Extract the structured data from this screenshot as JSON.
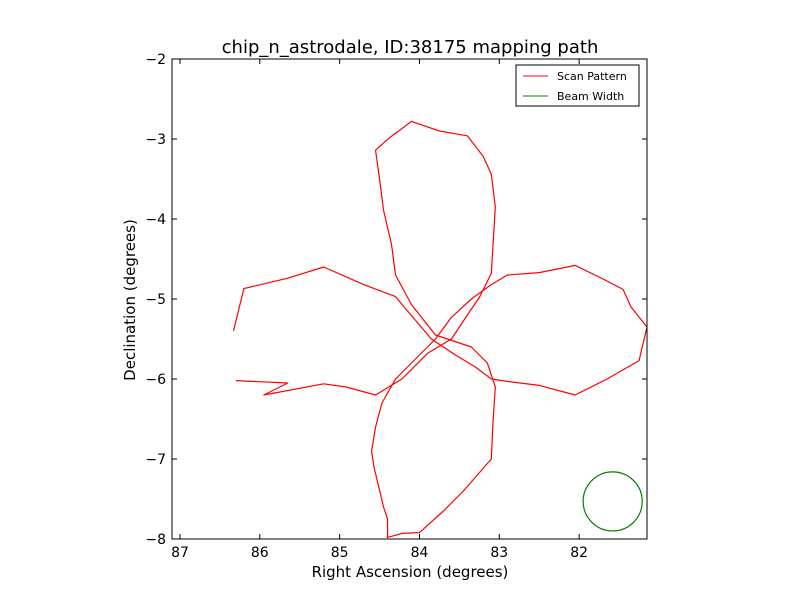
{
  "chart_data": {
    "type": "line",
    "title": "chip_n_astrodale, ID:38175 mapping path",
    "xlabel": "Right Ascension (degrees)",
    "ylabel": "Declination (degrees)",
    "xlim": [
      87.1,
      81.15
    ],
    "ylim": [
      -8,
      -2
    ],
    "xticks": [
      87,
      86,
      85,
      84,
      83,
      82
    ],
    "yticks": [
      -2,
      -3,
      -4,
      -5,
      -6,
      -7,
      -8
    ],
    "xtick_labels": [
      "87",
      "86",
      "85",
      "84",
      "83",
      "82"
    ],
    "ytick_labels": [
      "−2",
      "−3",
      "−4",
      "−5",
      "−6",
      "−7",
      "−8"
    ],
    "grid": false,
    "legend_position": "top-right",
    "colors": {
      "scan": "#ff0000",
      "beam": "#008000"
    },
    "series": [
      {
        "name": "Scan Pattern",
        "kind": "line",
        "x": [
          86.33,
          86.2,
          85.65,
          85.2,
          84.7,
          84.3,
          84.15,
          83.85,
          83.55,
          83.3,
          83.1,
          82.9,
          82.5,
          82.05,
          81.65,
          81.3,
          81.25,
          81.15,
          81.35,
          81.45,
          81.7,
          82.05,
          82.5,
          82.9,
          83.1,
          83.35,
          83.6,
          83.8,
          84.05,
          84.3,
          84.47,
          84.55,
          84.6,
          84.57,
          84.45,
          84.4,
          84.4,
          84.22,
          84.0,
          83.7,
          83.45,
          83.1,
          83.08,
          83.05,
          83.15,
          83.35,
          83.8,
          84.1,
          84.3,
          84.35,
          84.45,
          84.5,
          84.55,
          84.37,
          84.1,
          83.75,
          83.4,
          83.2,
          83.1,
          83.05,
          83.1,
          83.25,
          83.4,
          83.6,
          83.9,
          84.22,
          84.55,
          84.92,
          85.2,
          85.95,
          85.65,
          86.3
        ],
        "y": [
          -5.4,
          -4.87,
          -4.74,
          -4.6,
          -4.82,
          -4.97,
          -5.15,
          -5.5,
          -5.7,
          -5.85,
          -6.0,
          -6.03,
          -6.08,
          -6.2,
          -6.0,
          -5.8,
          -5.77,
          -5.35,
          -5.1,
          -4.88,
          -4.75,
          -4.58,
          -4.67,
          -4.7,
          -4.82,
          -5.0,
          -5.23,
          -5.5,
          -5.75,
          -6.0,
          -6.3,
          -6.6,
          -6.9,
          -7.1,
          -7.6,
          -7.75,
          -7.98,
          -7.93,
          -7.92,
          -7.65,
          -7.4,
          -7.0,
          -6.55,
          -6.1,
          -5.8,
          -5.6,
          -5.45,
          -5.07,
          -4.7,
          -4.32,
          -3.89,
          -3.5,
          -3.14,
          -2.98,
          -2.78,
          -2.9,
          -2.96,
          -3.22,
          -3.44,
          -3.85,
          -4.68,
          -4.98,
          -5.2,
          -5.5,
          -5.68,
          -6.0,
          -6.2,
          -6.1,
          -6.06,
          -6.2,
          -6.05,
          -6.02
        ]
      },
      {
        "name": "Beam Width",
        "kind": "circle",
        "center": [
          81.58,
          -7.53
        ],
        "radius": 0.37
      }
    ]
  }
}
